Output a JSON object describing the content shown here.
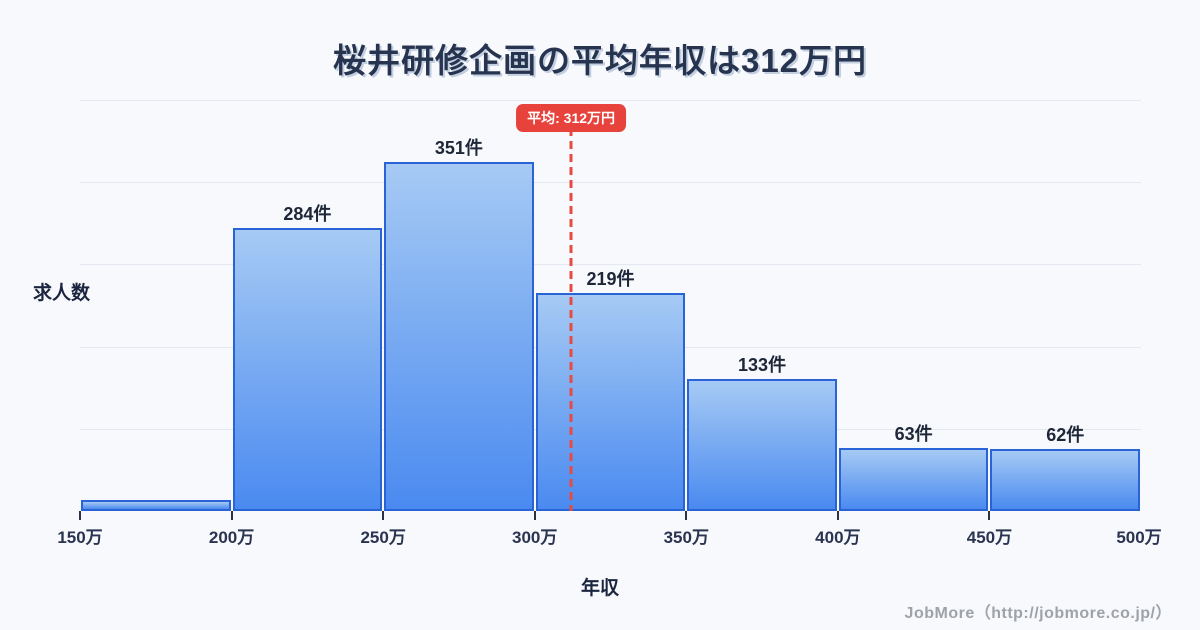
{
  "title": "桜井研修企画の平均年収は312万円",
  "chart_data": {
    "type": "bar",
    "subtype": "histogram",
    "categories": [
      "150万-200万",
      "200万-250万",
      "250万-300万",
      "300万-350万",
      "350万-400万",
      "400万-450万",
      "450万-500万"
    ],
    "values": [
      11,
      284,
      351,
      219,
      133,
      63,
      62
    ],
    "bar_labels": [
      "",
      "284件",
      "351件",
      "219件",
      "133件",
      "63件",
      "62件"
    ],
    "x_tick_labels": [
      "150万",
      "200万",
      "250万",
      "300万",
      "350万",
      "400万",
      "450万",
      "500万"
    ],
    "x_range": [
      150,
      500
    ],
    "ylim": [
      0,
      413
    ],
    "gridline_divisions": 5,
    "grid": "horizontal",
    "xlabel": "年収",
    "ylabel": "求人数",
    "average_line": {
      "value": 312,
      "label": "平均: 312万円"
    }
  },
  "footer": {
    "credit": "JobMore（http://jobmore.co.jp/）"
  },
  "colors": {
    "background": "#f7f9fc",
    "gridline": "#e4e8f1",
    "bar_border": "#2a63d6",
    "bar_gradient_top": "#a6caf4",
    "bar_gradient_bottom": "#4a8af0",
    "average_line": "#e74a42",
    "average_badge_bg": "#e8423c",
    "average_badge_text": "#ffffff",
    "title_text": "#27344f",
    "label_text": "#1d2738",
    "footer_text": "#9fa3a8"
  }
}
